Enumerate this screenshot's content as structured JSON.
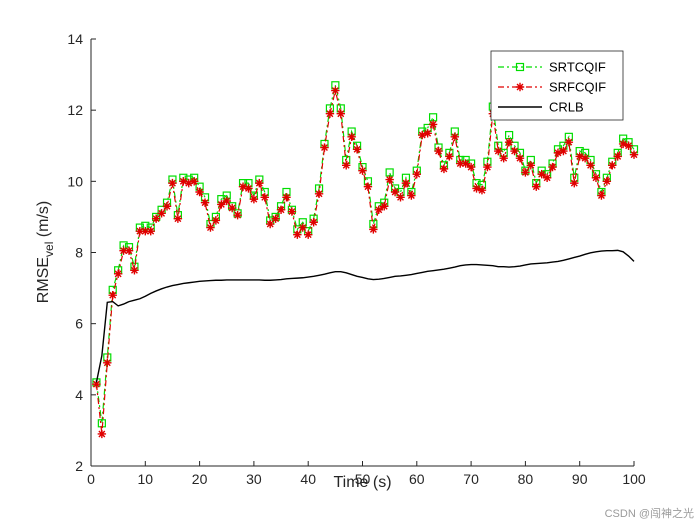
{
  "chart_data": {
    "type": "line",
    "title": "",
    "xlabel": "Time (s)",
    "ylabel": {
      "main": "RMSE",
      "sub": "vel",
      "unit": " (m/s)"
    },
    "xlim": [
      0,
      100
    ],
    "ylim": [
      2,
      14
    ],
    "xticks": [
      "0",
      "10",
      "20",
      "30",
      "40",
      "50",
      "60",
      "70",
      "80",
      "90",
      "100"
    ],
    "yticks": [
      "2",
      "4",
      "6",
      "8",
      "10",
      "12",
      "14"
    ],
    "legend_position": "top-right",
    "x": [
      1,
      2,
      3,
      4,
      5,
      6,
      7,
      8,
      9,
      10,
      11,
      12,
      13,
      14,
      15,
      16,
      17,
      18,
      19,
      20,
      21,
      22,
      23,
      24,
      25,
      26,
      27,
      28,
      29,
      30,
      31,
      32,
      33,
      34,
      35,
      36,
      37,
      38,
      39,
      40,
      41,
      42,
      43,
      44,
      45,
      46,
      47,
      48,
      49,
      50,
      51,
      52,
      53,
      54,
      55,
      56,
      57,
      58,
      59,
      60,
      61,
      62,
      63,
      64,
      65,
      66,
      67,
      68,
      69,
      70,
      71,
      72,
      73,
      74,
      75,
      76,
      77,
      78,
      79,
      80,
      81,
      82,
      83,
      84,
      85,
      86,
      87,
      88,
      89,
      90,
      91,
      92,
      93,
      94,
      95,
      96,
      97,
      98,
      99,
      100
    ],
    "series": [
      {
        "name": "SRTCQIF",
        "color": "#00dd00",
        "values": [
          4.35,
          3.2,
          5.05,
          6.95,
          7.5,
          8.2,
          8.15,
          7.6,
          8.7,
          8.75,
          8.7,
          9.0,
          9.2,
          9.4,
          10.05,
          9.05,
          10.1,
          10.05,
          10.1,
          9.85,
          9.55,
          8.8,
          9.0,
          9.5,
          9.6,
          9.3,
          9.1,
          9.95,
          9.95,
          9.6,
          10.05,
          9.7,
          8.9,
          9.0,
          9.3,
          9.7,
          9.2,
          8.65,
          8.85,
          8.6,
          8.95,
          9.8,
          11.05,
          12.05,
          12.7,
          12.05,
          10.6,
          11.4,
          11.0,
          10.4,
          10.0,
          8.8,
          9.3,
          9.4,
          10.25,
          9.8,
          9.7,
          10.1,
          9.7,
          10.3,
          11.4,
          11.5,
          11.8,
          10.95,
          10.45,
          10.8,
          11.4,
          10.6,
          10.6,
          10.5,
          9.95,
          9.9,
          10.55,
          12.1,
          11.0,
          10.8,
          11.3,
          11.0,
          10.8,
          10.3,
          10.6,
          9.95,
          10.3,
          10.2,
          10.5,
          10.9,
          11.0,
          11.25,
          10.1,
          10.85,
          10.8,
          10.6,
          10.2,
          9.7,
          10.1,
          10.55,
          10.8,
          11.2,
          11.1,
          10.9
        ]
      },
      {
        "name": "SRFCQIF",
        "color": "#e00000",
        "values": [
          4.3,
          2.9,
          4.9,
          6.8,
          7.4,
          8.05,
          8.05,
          7.5,
          8.6,
          8.6,
          8.6,
          8.95,
          9.1,
          9.3,
          9.95,
          8.95,
          10.0,
          9.95,
          10.0,
          9.7,
          9.4,
          8.7,
          8.9,
          9.35,
          9.45,
          9.25,
          9.05,
          9.85,
          9.8,
          9.5,
          9.95,
          9.55,
          8.8,
          8.95,
          9.2,
          9.55,
          9.15,
          8.5,
          8.7,
          8.5,
          8.85,
          9.65,
          10.95,
          11.9,
          12.55,
          11.9,
          10.45,
          11.25,
          10.9,
          10.3,
          9.85,
          8.65,
          9.2,
          9.3,
          10.05,
          9.7,
          9.55,
          9.95,
          9.6,
          10.2,
          11.3,
          11.35,
          11.6,
          10.85,
          10.35,
          10.7,
          11.25,
          10.5,
          10.5,
          10.4,
          9.8,
          9.75,
          10.4,
          11.9,
          10.85,
          10.65,
          11.1,
          10.85,
          10.65,
          10.25,
          10.45,
          9.85,
          10.2,
          10.1,
          10.4,
          10.8,
          10.85,
          11.1,
          9.95,
          10.7,
          10.65,
          10.45,
          10.1,
          9.6,
          10.0,
          10.45,
          10.7,
          11.05,
          11.0,
          10.75
        ]
      },
      {
        "name": "CRLB",
        "color": "#000000",
        "values": [
          4.35,
          5.1,
          6.6,
          6.62,
          6.5,
          6.55,
          6.62,
          6.66,
          6.7,
          6.77,
          6.85,
          6.92,
          6.98,
          7.03,
          7.07,
          7.1,
          7.13,
          7.15,
          7.17,
          7.19,
          7.2,
          7.21,
          7.22,
          7.22,
          7.23,
          7.23,
          7.23,
          7.23,
          7.23,
          7.23,
          7.23,
          7.22,
          7.22,
          7.23,
          7.24,
          7.26,
          7.27,
          7.28,
          7.29,
          7.31,
          7.33,
          7.36,
          7.39,
          7.43,
          7.46,
          7.46,
          7.43,
          7.38,
          7.33,
          7.3,
          7.26,
          7.24,
          7.25,
          7.27,
          7.3,
          7.33,
          7.34,
          7.36,
          7.38,
          7.41,
          7.44,
          7.47,
          7.49,
          7.51,
          7.53,
          7.56,
          7.59,
          7.63,
          7.65,
          7.66,
          7.66,
          7.65,
          7.64,
          7.63,
          7.6,
          7.6,
          7.59,
          7.6,
          7.62,
          7.65,
          7.68,
          7.69,
          7.7,
          7.71,
          7.73,
          7.75,
          7.78,
          7.82,
          7.86,
          7.9,
          7.95,
          7.99,
          8.02,
          8.04,
          8.05,
          8.05,
          8.06,
          8.02,
          7.9,
          7.75
        ]
      }
    ]
  },
  "watermark": "CSDN @闯神之光"
}
